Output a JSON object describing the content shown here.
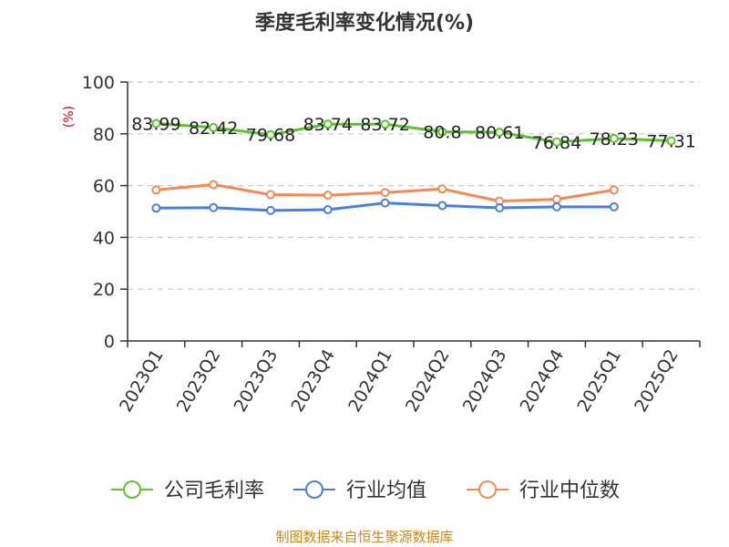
{
  "chart_data": {
    "type": "line",
    "title": "季度毛利率变化情况(%)",
    "ylabel": "(%)",
    "ylim": [
      0,
      100
    ],
    "yticks": [
      0,
      20,
      40,
      60,
      80,
      100
    ],
    "grid": "horizontal dashed",
    "legend_position": "bottom",
    "categories": [
      "2023Q1",
      "2023Q2",
      "2023Q3",
      "2023Q4",
      "2024Q1",
      "2024Q2",
      "2024Q3",
      "2024Q4",
      "2025Q1",
      "2025Q2"
    ],
    "series": [
      {
        "name": "公司毛利率",
        "color": "#5cc22f",
        "values": [
          83.99,
          82.42,
          79.68,
          83.74,
          83.72,
          80.8,
          80.61,
          76.84,
          78.23,
          77.31
        ],
        "labels": [
          "83.99",
          "82.42",
          "79.68",
          "83.74",
          "83.72",
          "80.8",
          "80.61",
          "76.84",
          "78.23",
          "77.31"
        ]
      },
      {
        "name": "行业均值",
        "color": "#4a7fde",
        "values": [
          51.3,
          51.5,
          50.4,
          50.7,
          53.3,
          52.3,
          51.4,
          51.8,
          51.8,
          null
        ]
      },
      {
        "name": "行业中位数",
        "color": "#f28a55",
        "values": [
          58.3,
          60.4,
          56.5,
          56.3,
          57.3,
          58.7,
          54.0,
          54.7,
          58.3,
          null
        ]
      }
    ]
  },
  "footer": {
    "source": "制图数据来自恒生聚源数据库"
  }
}
